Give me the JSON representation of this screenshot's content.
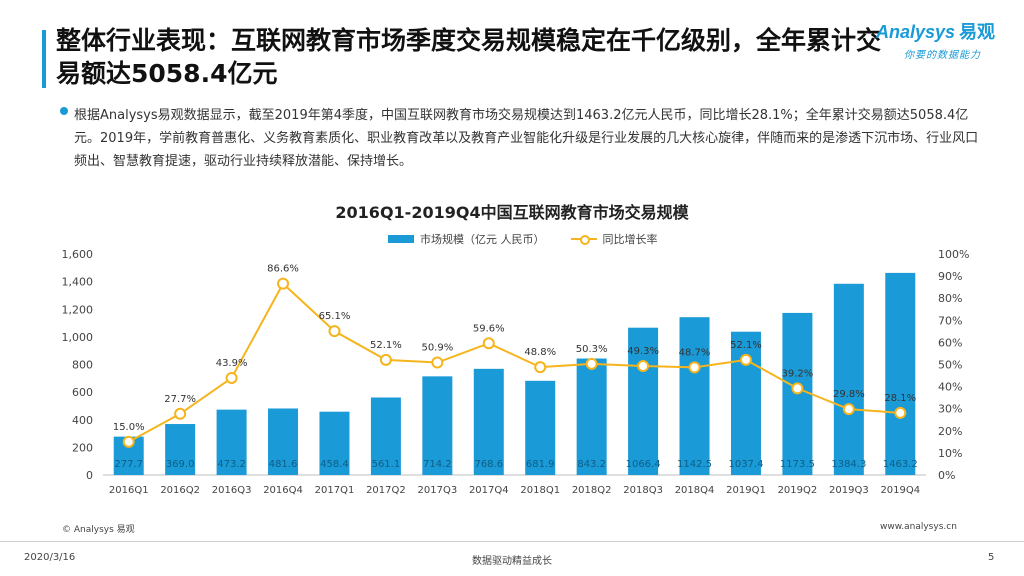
{
  "header": {
    "title": "整体行业表现：互联网教育市场季度交易规模稳定在千亿级别，全年累计交易额达5058.4亿元",
    "logo_main": "Analysys",
    "logo_cn": "易观",
    "logo_sub": "你要的数据能力"
  },
  "description": "根据Analysys易观数据显示，截至2019年第4季度，中国互联网教育市场交易规模达到1463.2亿元人民币，同比增长28.1%；全年累计交易额达5058.4亿元。2019年，学前教育普惠化、义务教育素质化、职业教育改革以及教育产业智能化升级是行业发展的几大核心旋律，伴随而来的是渗透下沉市场、行业风口频出、智慧教育提速，驱动行业持续释放潜能、保持增长。",
  "chart_data": {
    "type": "bar",
    "title": "2016Q1-2019Q4中国互联网教育市场交易规模",
    "categories": [
      "2016Q1",
      "2016Q2",
      "2016Q3",
      "2016Q4",
      "2017Q1",
      "2017Q2",
      "2017Q3",
      "2017Q4",
      "2018Q1",
      "2018Q2",
      "2018Q3",
      "2018Q4",
      "2019Q1",
      "2019Q2",
      "2019Q3",
      "2019Q4"
    ],
    "series": [
      {
        "name": "市场规模（亿元 人民币）",
        "type": "bar",
        "axis": "left",
        "color": "#1a9ad6",
        "values": [
          277.7,
          369.0,
          473.2,
          481.6,
          458.4,
          561.1,
          714.2,
          768.6,
          681.9,
          843.2,
          1066.4,
          1142.5,
          1037.4,
          1173.5,
          1384.3,
          1463.2
        ]
      },
      {
        "name": "同比增长率",
        "type": "line",
        "axis": "right",
        "color": "#f6b41d",
        "values": [
          15.0,
          27.7,
          43.9,
          86.6,
          65.1,
          52.1,
          50.9,
          59.6,
          48.8,
          50.3,
          49.3,
          48.7,
          52.1,
          39.2,
          29.8,
          28.1
        ]
      }
    ],
    "ylim_left": [
      0,
      1600
    ],
    "yticks_left": [
      "0",
      "200",
      "400",
      "600",
      "800",
      "1,000",
      "1,200",
      "1,400",
      "1,600"
    ],
    "ylim_right": [
      0,
      100
    ],
    "yticks_right": [
      "0%",
      "10%",
      "20%",
      "30%",
      "40%",
      "50%",
      "60%",
      "70%",
      "80%",
      "90%",
      "100%"
    ],
    "legend": "top-center",
    "grid": false
  },
  "footer": {
    "copyright": "© Analysys 易观",
    "website": "www.analysys.cn",
    "date": "2020/3/16",
    "slogan": "数据驱动精益成长",
    "page": "5"
  }
}
